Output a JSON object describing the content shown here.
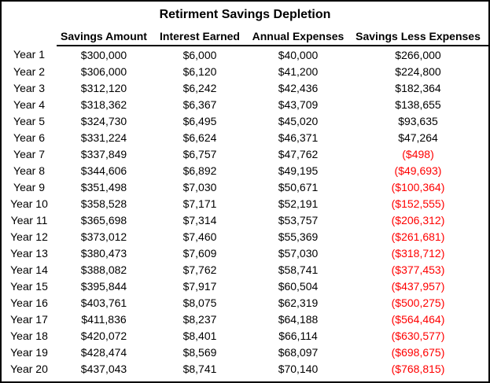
{
  "title": "Retirment Savings Depletion",
  "colors": {
    "text": "#000000",
    "negative": "#FF0000",
    "border": "#000000",
    "background": "#FFFFFF"
  },
  "table": {
    "headers": [
      "",
      "Savings Amount",
      "Interest Earned",
      "Annual Expenses",
      "Savings Less Expenses"
    ],
    "rows": [
      {
        "year": "Year 1",
        "savings": "$300,000",
        "interest": "$6,000",
        "expenses": "$40,000",
        "net": "$266,000",
        "negative": false
      },
      {
        "year": "Year 2",
        "savings": "$306,000",
        "interest": "$6,120",
        "expenses": "$41,200",
        "net": "$224,800",
        "negative": false
      },
      {
        "year": "Year 3",
        "savings": "$312,120",
        "interest": "$6,242",
        "expenses": "$42,436",
        "net": "$182,364",
        "negative": false
      },
      {
        "year": "Year 4",
        "savings": "$318,362",
        "interest": "$6,367",
        "expenses": "$43,709",
        "net": "$138,655",
        "negative": false
      },
      {
        "year": "Year 5",
        "savings": "$324,730",
        "interest": "$6,495",
        "expenses": "$45,020",
        "net": "$93,635",
        "negative": false
      },
      {
        "year": "Year 6",
        "savings": "$331,224",
        "interest": "$6,624",
        "expenses": "$46,371",
        "net": "$47,264",
        "negative": false
      },
      {
        "year": "Year 7",
        "savings": "$337,849",
        "interest": "$6,757",
        "expenses": "$47,762",
        "net": "($498)",
        "negative": true
      },
      {
        "year": "Year 8",
        "savings": "$344,606",
        "interest": "$6,892",
        "expenses": "$49,195",
        "net": "($49,693)",
        "negative": true
      },
      {
        "year": "Year 9",
        "savings": "$351,498",
        "interest": "$7,030",
        "expenses": "$50,671",
        "net": "($100,364)",
        "negative": true
      },
      {
        "year": "Year 10",
        "savings": "$358,528",
        "interest": "$7,171",
        "expenses": "$52,191",
        "net": "($152,555)",
        "negative": true
      },
      {
        "year": "Year 11",
        "savings": "$365,698",
        "interest": "$7,314",
        "expenses": "$53,757",
        "net": "($206,312)",
        "negative": true
      },
      {
        "year": "Year 12",
        "savings": "$373,012",
        "interest": "$7,460",
        "expenses": "$55,369",
        "net": "($261,681)",
        "negative": true
      },
      {
        "year": "Year 13",
        "savings": "$380,473",
        "interest": "$7,609",
        "expenses": "$57,030",
        "net": "($318,712)",
        "negative": true
      },
      {
        "year": "Year 14",
        "savings": "$388,082",
        "interest": "$7,762",
        "expenses": "$58,741",
        "net": "($377,453)",
        "negative": true
      },
      {
        "year": "Year 15",
        "savings": "$395,844",
        "interest": "$7,917",
        "expenses": "$60,504",
        "net": "($437,957)",
        "negative": true
      },
      {
        "year": "Year 16",
        "savings": "$403,761",
        "interest": "$8,075",
        "expenses": "$62,319",
        "net": "($500,275)",
        "negative": true
      },
      {
        "year": "Year 17",
        "savings": "$411,836",
        "interest": "$8,237",
        "expenses": "$64,188",
        "net": "($564,464)",
        "negative": true
      },
      {
        "year": "Year 18",
        "savings": "$420,072",
        "interest": "$8,401",
        "expenses": "$66,114",
        "net": "($630,577)",
        "negative": true
      },
      {
        "year": "Year 19",
        "savings": "$428,474",
        "interest": "$8,569",
        "expenses": "$68,097",
        "net": "($698,675)",
        "negative": true
      },
      {
        "year": "Year 20",
        "savings": "$437,043",
        "interest": "$8,741",
        "expenses": "$70,140",
        "net": "($768,815)",
        "negative": true
      }
    ]
  },
  "chart_data": {
    "type": "table",
    "title": "Retirment Savings Depletion",
    "columns": [
      "Year",
      "Savings Amount",
      "Interest Earned",
      "Annual Expenses",
      "Savings Less Expenses"
    ],
    "categories": [
      "Year 1",
      "Year 2",
      "Year 3",
      "Year 4",
      "Year 5",
      "Year 6",
      "Year 7",
      "Year 8",
      "Year 9",
      "Year 10",
      "Year 11",
      "Year 12",
      "Year 13",
      "Year 14",
      "Year 15",
      "Year 16",
      "Year 17",
      "Year 18",
      "Year 19",
      "Year 20"
    ],
    "series": [
      {
        "name": "Savings Amount",
        "values": [
          300000,
          306000,
          312120,
          318362,
          324730,
          331224,
          337849,
          344606,
          351498,
          358528,
          365698,
          373012,
          380473,
          388082,
          395844,
          403761,
          411836,
          420072,
          428474,
          437043
        ]
      },
      {
        "name": "Interest Earned",
        "values": [
          6000,
          6120,
          6242,
          6367,
          6495,
          6624,
          6757,
          6892,
          7030,
          7171,
          7314,
          7460,
          7609,
          7762,
          7917,
          8075,
          8237,
          8401,
          8569,
          8741
        ]
      },
      {
        "name": "Annual Expenses",
        "values": [
          40000,
          41200,
          42436,
          43709,
          45020,
          46371,
          47762,
          49195,
          50671,
          52191,
          53757,
          55369,
          57030,
          58741,
          60504,
          62319,
          64188,
          66114,
          68097,
          70140
        ]
      },
      {
        "name": "Savings Less Expenses",
        "values": [
          266000,
          224800,
          182364,
          138655,
          93635,
          47264,
          -498,
          -49693,
          -100364,
          -152555,
          -206312,
          -261681,
          -318712,
          -377453,
          -437957,
          -500275,
          -564464,
          -630577,
          -698675,
          -768815
        ]
      }
    ],
    "layout_hints": {
      "negative_values_styled": "red with parentheses",
      "grid": false
    }
  }
}
